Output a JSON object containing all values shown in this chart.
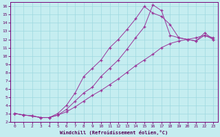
{
  "xlabel": "Windchill (Refroidissement éolien,°C)",
  "bg_color": "#c5edf0",
  "line_color": "#993399",
  "grid_color": "#9dd8e0",
  "xlim": [
    -0.5,
    23.5
  ],
  "ylim": [
    2,
    16.5
  ],
  "xticks": [
    0,
    1,
    2,
    3,
    4,
    5,
    6,
    7,
    8,
    9,
    10,
    11,
    12,
    13,
    14,
    15,
    16,
    17,
    18,
    19,
    20,
    21,
    22,
    23
  ],
  "yticks": [
    2,
    3,
    4,
    5,
    6,
    7,
    8,
    9,
    10,
    11,
    12,
    13,
    14,
    15,
    16
  ],
  "line_steep_x": [
    0,
    1,
    2,
    3,
    4,
    5,
    6,
    7,
    8,
    9,
    10,
    11,
    12,
    13,
    14,
    15,
    16,
    17,
    18,
    19,
    20,
    21,
    22,
    23
  ],
  "line_steep_y": [
    3.0,
    2.8,
    2.7,
    2.5,
    2.5,
    3.0,
    4.0,
    5.5,
    7.5,
    8.5,
    9.5,
    11.0,
    12.0,
    13.2,
    14.5,
    16.0,
    15.2,
    14.8,
    13.8,
    12.2,
    12.0,
    11.8,
    12.8,
    12.0
  ],
  "line_peak_x": [
    0,
    1,
    2,
    3,
    4,
    5,
    6,
    7,
    8,
    9,
    10,
    11,
    12,
    13,
    14,
    15,
    16,
    17,
    18,
    19,
    20,
    21,
    22,
    23
  ],
  "line_peak_y": [
    3.0,
    2.8,
    2.7,
    2.5,
    2.5,
    2.8,
    3.5,
    4.5,
    5.5,
    6.2,
    7.5,
    8.5,
    9.5,
    10.8,
    12.2,
    13.5,
    16.2,
    15.5,
    12.5,
    12.2,
    12.0,
    11.8,
    12.5,
    12.0
  ],
  "line_flat_x": [
    0,
    1,
    2,
    3,
    4,
    5,
    6,
    7,
    8,
    9,
    10,
    11,
    12,
    13,
    14,
    15,
    16,
    17,
    18,
    19,
    20,
    21,
    22,
    23
  ],
  "line_flat_y": [
    3.0,
    2.8,
    2.7,
    2.5,
    2.5,
    2.8,
    3.2,
    3.8,
    4.5,
    5.2,
    5.8,
    6.5,
    7.2,
    8.0,
    8.8,
    9.5,
    10.2,
    11.0,
    11.5,
    11.8,
    12.0,
    12.2,
    12.5,
    12.2
  ]
}
